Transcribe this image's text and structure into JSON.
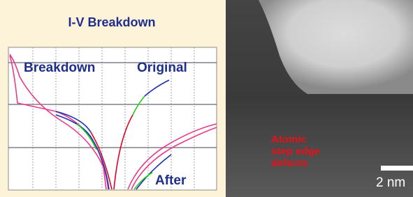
{
  "panel_left": {
    "title": "I-V Breakdown",
    "labels": [
      "Breakdown",
      "Original",
      "After"
    ]
  },
  "panel_right": {
    "annotation": [
      "Atomic",
      "step edge",
      "defects"
    ],
    "scale_bar": "2 nm"
  }
}
